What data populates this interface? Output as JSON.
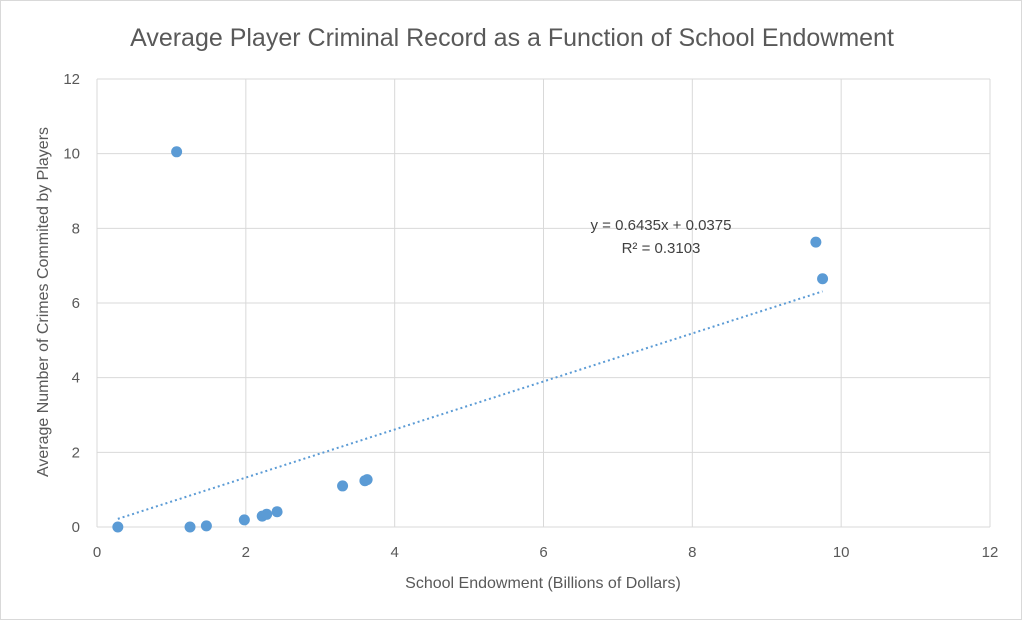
{
  "chart_data": {
    "type": "scatter",
    "title": "Average Player Criminal Record as a Function of School Endowment",
    "xlabel": "School Endowment (Billions of Dollars)",
    "ylabel": "Average Number of Crimes Commited by Players",
    "xlim": [
      0,
      12
    ],
    "ylim": [
      0,
      12
    ],
    "x_ticks": [
      "0",
      "2",
      "4",
      "6",
      "8",
      "10",
      "12"
    ],
    "y_ticks": [
      "0",
      "2",
      "4",
      "6",
      "8",
      "10",
      "12"
    ],
    "grid": true,
    "legend": "none",
    "series": [
      {
        "color": "#5b9bd5",
        "points": [
          {
            "x": 0.28,
            "y": 0.0
          },
          {
            "x": 1.07,
            "y": 10.05
          },
          {
            "x": 1.25,
            "y": 0.0
          },
          {
            "x": 1.47,
            "y": 0.03
          },
          {
            "x": 1.98,
            "y": 0.19
          },
          {
            "x": 2.22,
            "y": 0.29
          },
          {
            "x": 2.28,
            "y": 0.34
          },
          {
            "x": 2.42,
            "y": 0.41
          },
          {
            "x": 3.3,
            "y": 1.1
          },
          {
            "x": 3.6,
            "y": 1.24
          },
          {
            "x": 3.63,
            "y": 1.27
          },
          {
            "x": 9.66,
            "y": 7.63
          },
          {
            "x": 9.75,
            "y": 6.65
          }
        ]
      }
    ],
    "trendline": {
      "type": "linear",
      "slope": 0.6435,
      "intercept": 0.0375,
      "x_range": [
        0.28,
        9.75
      ],
      "style": "dotted",
      "color": "#5b9bd5",
      "equation_label": "y = 0.6435x + 0.0375",
      "r2_label": "R² = 0.3103"
    }
  }
}
